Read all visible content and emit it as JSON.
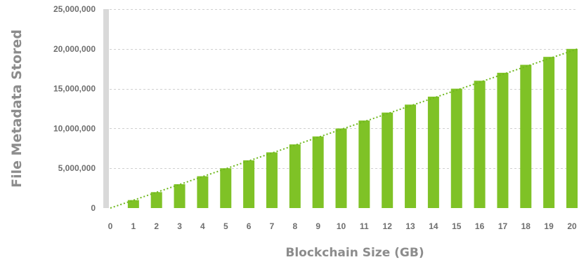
{
  "chart_data": {
    "type": "bar",
    "title": "",
    "xlabel": "Blockchain Size (GB)",
    "ylabel": "File Metadata Stored",
    "categories": [
      "0",
      "1",
      "2",
      "3",
      "4",
      "5",
      "6",
      "7",
      "8",
      "9",
      "10",
      "11",
      "12",
      "13",
      "14",
      "15",
      "16",
      "17",
      "18",
      "19",
      "20"
    ],
    "values": [
      0,
      1000000,
      2000000,
      3000000,
      4000000,
      5000000,
      6000000,
      7000000,
      8000000,
      9000000,
      10000000,
      11000000,
      12000000,
      13000000,
      14000000,
      15000000,
      16000000,
      17000000,
      18000000,
      19000000,
      20000000
    ],
    "ylim": [
      0,
      25000000
    ],
    "y_ticks": [
      0,
      5000000,
      10000000,
      15000000,
      20000000,
      25000000
    ],
    "y_tick_labels": [
      "0",
      "5,000,000",
      "10,000,000",
      "15,000,000",
      "20,000,000",
      "25,000,000"
    ],
    "trendline": {
      "style": "dotted",
      "from": [
        0,
        0
      ],
      "to": [
        20,
        20000000
      ]
    },
    "grid": "horizontal-dashed",
    "legend": "none",
    "colors": {
      "bar": "#7fc226",
      "trendline": "#6fb81e",
      "axis": "#d9d9d9",
      "grid": "#d0d0d0",
      "tick_text": "#6e6e6e",
      "label_text": "#8c8c8c"
    }
  }
}
